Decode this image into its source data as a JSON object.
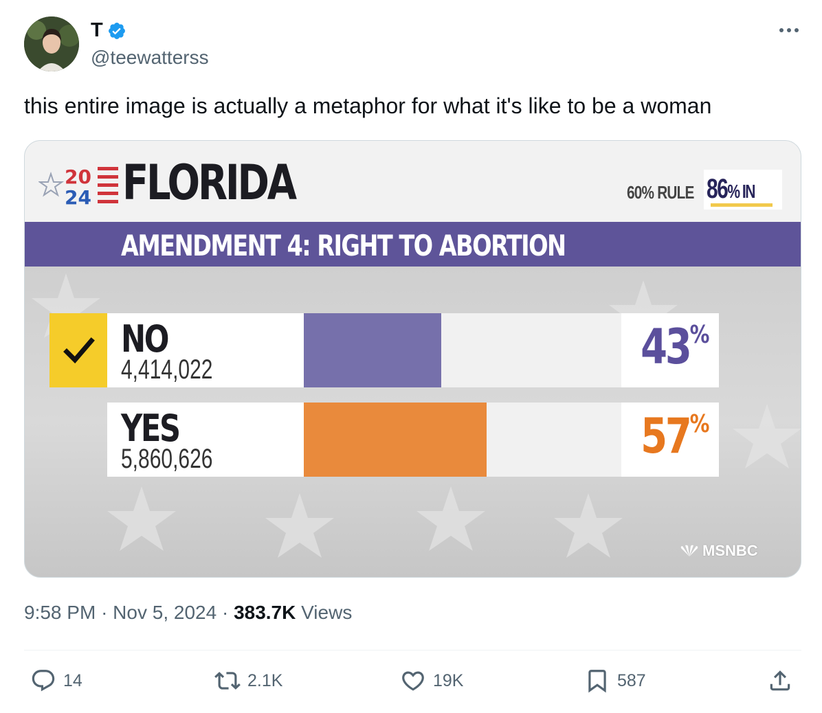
{
  "author": {
    "display_name": "T",
    "handle": "@teewatterss",
    "verified": true
  },
  "tweet": {
    "text": "this entire image is actually a metaphor for what it's like to be a woman"
  },
  "media": {
    "logo_year_top": "20",
    "logo_year_bottom": "24",
    "state": "FLORIDA",
    "rule": "60% RULE",
    "reporting_value": "86",
    "reporting_unit": "% IN",
    "reporting_fraction": 0.86,
    "headline": "AMENDMENT 4: RIGHT TO ABORTION",
    "network": "MSNBC",
    "results": [
      {
        "label": "NO",
        "votes": "4,414,022",
        "percent": 43,
        "percent_sign": "%",
        "color": "#7670ab",
        "winner": true
      },
      {
        "label": "YES",
        "votes": "5,860,626",
        "percent": 57,
        "percent_sign": "%",
        "color": "#e98a3c",
        "winner": false
      }
    ],
    "colors": {
      "band": "#5e5499",
      "check": "#f5cc2a",
      "no_text": "#5b4f9c",
      "yes_text": "#e7781f"
    }
  },
  "meta": {
    "time": "9:58 PM",
    "sep": "·",
    "date": "Nov 5, 2024",
    "views_count": "383.7K",
    "views_label": "Views"
  },
  "actions": {
    "replies": "14",
    "reposts": "2.1K",
    "likes": "19K",
    "bookmarks": "587"
  },
  "icons": [
    "verified-badge-icon",
    "more-icon",
    "checkmark-icon",
    "reply-icon",
    "repost-icon",
    "like-icon",
    "bookmark-icon",
    "share-icon",
    "star-icon"
  ]
}
